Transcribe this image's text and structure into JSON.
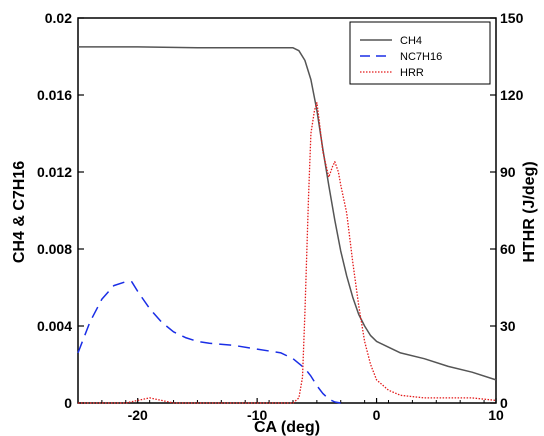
{
  "chart_data": {
    "type": "line",
    "xlabel": "CA (deg)",
    "ylabel_left": "CH4 & C7H16",
    "ylabel_right": "HTHR (J/deg)",
    "xlim": [
      -25,
      10
    ],
    "ylim_left": [
      0,
      0.02
    ],
    "ylim_right": [
      0,
      150
    ],
    "x_ticks": [
      -20,
      -10,
      0,
      10
    ],
    "y_ticks_left": [
      "0",
      "0.004",
      "0.008",
      "0.012",
      "0.016",
      "0.02"
    ],
    "y_ticks_right": [
      "0",
      "30",
      "60",
      "90",
      "120",
      "150"
    ],
    "grid": false,
    "legend_position": "top-right",
    "series": [
      {
        "name": "CH4",
        "axis": "left",
        "color": "#555555",
        "style": "solid",
        "x": [
          -25,
          -20,
          -15,
          -10,
          -8,
          -7,
          -6.5,
          -6,
          -5.5,
          -5,
          -4.5,
          -4,
          -3.5,
          -3,
          -2.5,
          -2,
          -1.5,
          -1,
          -0.5,
          0,
          1,
          2,
          4,
          6,
          8,
          10
        ],
        "y": [
          0.0185,
          0.0185,
          0.01845,
          0.01845,
          0.01845,
          0.01845,
          0.0183,
          0.0178,
          0.0168,
          0.0152,
          0.0132,
          0.0113,
          0.0095,
          0.0079,
          0.0066,
          0.0055,
          0.0046,
          0.004,
          0.0035,
          0.0032,
          0.0029,
          0.0026,
          0.0023,
          0.0019,
          0.0016,
          0.0012
        ]
      },
      {
        "name": "NC7H16",
        "axis": "left",
        "color": "#1a2ee6",
        "style": "dashed",
        "x": [
          -25,
          -24,
          -23,
          -22,
          -21,
          -20.5,
          -20,
          -19,
          -18,
          -17,
          -16,
          -15,
          -14,
          -12,
          -10,
          -8,
          -7,
          -6,
          -5.5,
          -5,
          -4.5,
          -4,
          -3.5,
          -3
        ],
        "y": [
          0.0026,
          0.0042,
          0.0054,
          0.0061,
          0.0063,
          0.0063,
          0.0058,
          0.0049,
          0.0042,
          0.0037,
          0.0034,
          0.0032,
          0.0031,
          0.003,
          0.0028,
          0.0026,
          0.0023,
          0.0018,
          0.0014,
          0.0009,
          0.0005,
          0.0002,
          5e-05,
          0
        ]
      },
      {
        "name": "HRR",
        "axis": "right",
        "color": "#e31a1a",
        "style": "dotted",
        "x": [
          -25,
          -21,
          -20,
          -19,
          -18,
          -17,
          -10,
          -8,
          -7,
          -6.5,
          -6.2,
          -6,
          -5.7,
          -5.5,
          -5.2,
          -5,
          -4.8,
          -4.5,
          -4,
          -3.7,
          -3.5,
          -3.2,
          -3,
          -2.5,
          -2,
          -1.5,
          -1,
          -0.5,
          0,
          1,
          2,
          4,
          6,
          8,
          10
        ],
        "y": [
          0,
          0,
          1,
          2,
          1,
          0,
          0,
          0,
          0,
          2,
          10,
          35,
          80,
          105,
          114,
          117,
          110,
          98,
          88,
          92,
          94,
          90,
          85,
          74,
          55,
          38,
          24,
          15,
          9,
          5,
          3,
          2,
          2,
          2,
          1
        ]
      }
    ]
  }
}
